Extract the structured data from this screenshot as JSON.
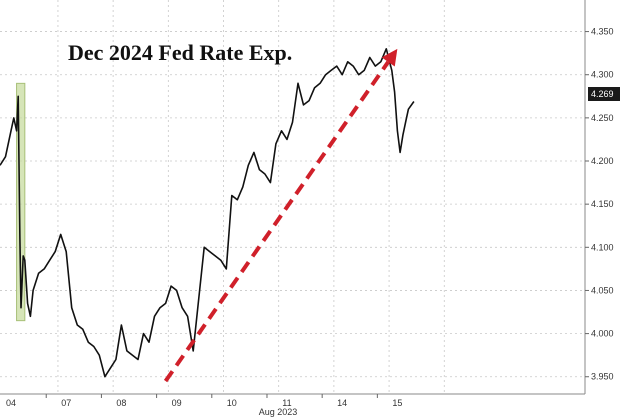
{
  "chart_data": {
    "type": "line",
    "title": "Dec 2024 Fed Rate Exp.",
    "xlabel": "Aug 2023",
    "ylabel": "",
    "ylim": [
      3.93,
      4.375
    ],
    "xlim": [
      0,
      10.6
    ],
    "x_ticks": [
      {
        "x": 0.2,
        "label": "04"
      },
      {
        "x": 1.2,
        "label": "07"
      },
      {
        "x": 2.2,
        "label": "08"
      },
      {
        "x": 3.2,
        "label": "09"
      },
      {
        "x": 4.2,
        "label": "10"
      },
      {
        "x": 5.2,
        "label": "11"
      },
      {
        "x": 6.2,
        "label": "14"
      },
      {
        "x": 7.2,
        "label": "15"
      }
    ],
    "y_ticks": [
      "3.950",
      "4.000",
      "4.050",
      "4.100",
      "4.150",
      "4.200",
      "4.250",
      "4.300",
      "4.350"
    ],
    "last_value": "4.269",
    "grid": true,
    "series": [
      {
        "color": "#111111",
        "x": [
          0,
          0.1,
          0.2,
          0.25,
          0.3,
          0.33,
          0.36,
          0.38,
          0.42,
          0.45,
          0.5,
          0.55,
          0.6,
          0.7,
          0.8,
          0.9,
          1.0,
          1.1,
          1.2,
          1.3,
          1.4,
          1.5,
          1.6,
          1.7,
          1.8,
          1.9,
          2.0,
          2.1,
          2.2,
          2.3,
          2.4,
          2.5,
          2.6,
          2.7,
          2.8,
          2.9,
          3.0,
          3.1,
          3.2,
          3.3,
          3.4,
          3.5,
          3.6,
          3.7,
          3.8,
          3.9,
          4.0,
          4.1,
          4.2,
          4.3,
          4.4,
          4.5,
          4.6,
          4.7,
          4.8,
          4.9,
          5.0,
          5.1,
          5.2,
          5.3,
          5.4,
          5.5,
          5.6,
          5.7,
          5.8,
          5.9,
          6.0,
          6.1,
          6.2,
          6.3,
          6.4,
          6.5,
          6.6,
          6.7,
          6.8,
          6.9,
          7.0,
          7.1,
          7.15,
          7.2,
          7.25,
          7.3,
          7.35,
          7.4,
          7.5
        ],
        "values": [
          4.195,
          4.205,
          4.235,
          4.25,
          4.235,
          4.275,
          4.11,
          4.03,
          4.09,
          4.085,
          4.035,
          4.02,
          4.05,
          4.07,
          4.075,
          4.085,
          4.095,
          4.115,
          4.095,
          4.03,
          4.01,
          4.005,
          3.99,
          3.985,
          3.975,
          3.95,
          3.96,
          3.97,
          4.01,
          3.98,
          3.975,
          3.97,
          4.0,
          3.99,
          4.02,
          4.03,
          4.035,
          4.055,
          4.05,
          4.03,
          4.02,
          3.98,
          4.04,
          4.1,
          4.095,
          4.09,
          4.085,
          4.075,
          4.16,
          4.155,
          4.17,
          4.195,
          4.21,
          4.19,
          4.185,
          4.175,
          4.22,
          4.235,
          4.225,
          4.245,
          4.29,
          4.265,
          4.27,
          4.285,
          4.29,
          4.3,
          4.305,
          4.31,
          4.3,
          4.315,
          4.31,
          4.3,
          4.305,
          4.32,
          4.31,
          4.315,
          4.33,
          4.305,
          4.28,
          4.235,
          4.21,
          4.23,
          4.245,
          4.26,
          4.269
        ]
      }
    ],
    "annotations": [
      {
        "type": "highlight-band",
        "color": "#c8dca0",
        "x_from": 0.3,
        "x_to": 0.45,
        "y_from": 4.015,
        "y_to": 4.29
      },
      {
        "type": "trend-arrow",
        "color": "#d0202a",
        "style": "dashed",
        "from": [
          3.0,
          3.945
        ],
        "to": [
          7.2,
          4.33
        ]
      }
    ]
  }
}
